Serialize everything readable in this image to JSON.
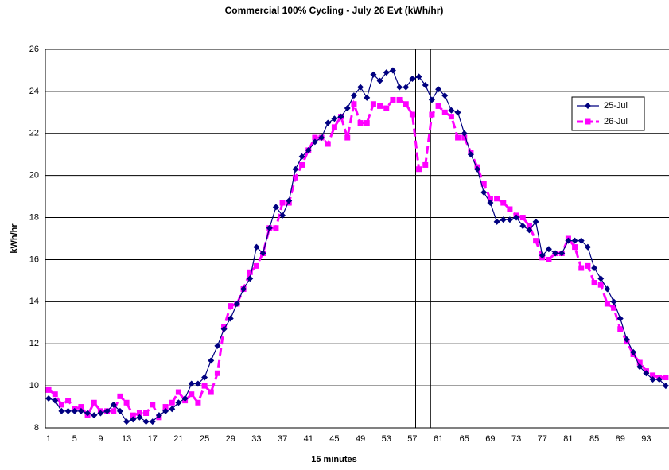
{
  "chart_data": {
    "type": "line",
    "title": "Commercial 100% Cycling - July 26 Evt (kWh/hr)",
    "x_label": "15 minutes",
    "y_label": "kWh/hr",
    "categories": [
      1,
      null,
      null,
      null,
      5,
      null,
      null,
      null,
      9,
      null,
      null,
      null,
      13,
      null,
      null,
      null,
      17,
      null,
      null,
      null,
      21,
      null,
      null,
      null,
      25,
      null,
      null,
      null,
      29,
      null,
      null,
      null,
      33,
      null,
      null,
      null,
      37,
      null,
      null,
      null,
      41,
      null,
      null,
      null,
      45,
      null,
      null,
      null,
      49,
      null,
      null,
      null,
      53,
      null,
      null,
      null,
      57,
      null,
      null,
      null,
      61,
      null,
      null,
      null,
      65,
      null,
      null,
      null,
      69,
      null,
      null,
      null,
      73,
      null,
      null,
      null,
      77,
      null,
      null,
      null,
      81,
      null,
      null,
      null,
      85,
      null,
      null,
      null,
      89,
      null,
      null,
      null,
      93,
      null,
      null,
      null
    ],
    "series": [
      {
        "name": "25-Jul",
        "color": "#000080",
        "marker": "diamond",
        "dashed": false,
        "values": [
          9.4,
          9.3,
          8.8,
          8.8,
          8.8,
          8.8,
          8.7,
          8.6,
          8.7,
          8.8,
          9.1,
          8.8,
          8.3,
          8.4,
          8.5,
          8.3,
          8.3,
          8.6,
          8.8,
          8.9,
          9.2,
          9.4,
          10.1,
          10.1,
          10.4,
          11.2,
          11.9,
          12.7,
          13.2,
          13.9,
          14.6,
          15.1,
          16.6,
          16.3,
          17.5,
          18.5,
          18.1,
          18.8,
          20.3,
          20.9,
          21.2,
          21.6,
          21.8,
          22.5,
          22.7,
          22.8,
          23.2,
          23.8,
          24.2,
          23.7,
          24.8,
          24.5,
          24.9,
          25.0,
          24.2,
          24.2,
          24.6,
          24.7,
          24.3,
          23.6,
          24.1,
          23.8,
          23.1,
          23.0,
          22.0,
          21.0,
          20.3,
          19.2,
          18.7,
          17.8,
          17.9,
          17.9,
          18.0,
          17.6,
          17.4,
          17.8,
          16.2,
          16.5,
          16.3,
          16.3,
          16.9,
          16.9,
          16.9,
          16.6,
          15.6,
          15.1,
          14.6,
          14.0,
          13.2,
          12.2,
          11.6,
          10.9,
          10.6,
          10.3,
          10.3,
          10.0
        ]
      },
      {
        "name": "26-Jul",
        "color": "#ff00ff",
        "marker": "square",
        "dashed": true,
        "values": [
          9.8,
          9.6,
          9.1,
          9.3,
          8.9,
          9.0,
          8.6,
          9.2,
          8.8,
          8.8,
          8.8,
          9.5,
          9.2,
          8.6,
          8.7,
          8.7,
          9.1,
          8.5,
          9.0,
          9.2,
          9.7,
          9.3,
          9.6,
          9.2,
          10.0,
          9.7,
          10.6,
          12.8,
          13.8,
          13.9,
          14.6,
          15.4,
          15.7,
          16.3,
          17.5,
          17.5,
          18.7,
          18.7,
          19.9,
          20.5,
          21.2,
          21.8,
          21.8,
          21.5,
          22.3,
          22.8,
          21.8,
          23.4,
          22.5,
          22.5,
          23.4,
          23.3,
          23.2,
          23.6,
          23.6,
          23.4,
          22.9,
          20.3,
          20.5,
          22.9,
          23.3,
          23.0,
          22.8,
          21.8,
          21.8,
          21.1,
          20.4,
          19.6,
          18.9,
          18.9,
          18.7,
          18.4,
          18.1,
          18.0,
          17.6,
          16.9,
          16.1,
          16.0,
          16.3,
          16.3,
          17.0,
          16.6,
          15.6,
          15.7,
          14.9,
          14.8,
          13.9,
          13.7,
          12.7,
          12.1,
          11.5,
          11.1,
          10.7,
          10.5,
          10.4,
          10.4
        ]
      }
    ],
    "event_lines": [
      57.5,
      59.8
    ],
    "ylim": [
      8,
      26
    ],
    "yticks": [
      8,
      10,
      12,
      14,
      16,
      18,
      20,
      22,
      24,
      26
    ],
    "grid": true,
    "legend": "upper right"
  }
}
